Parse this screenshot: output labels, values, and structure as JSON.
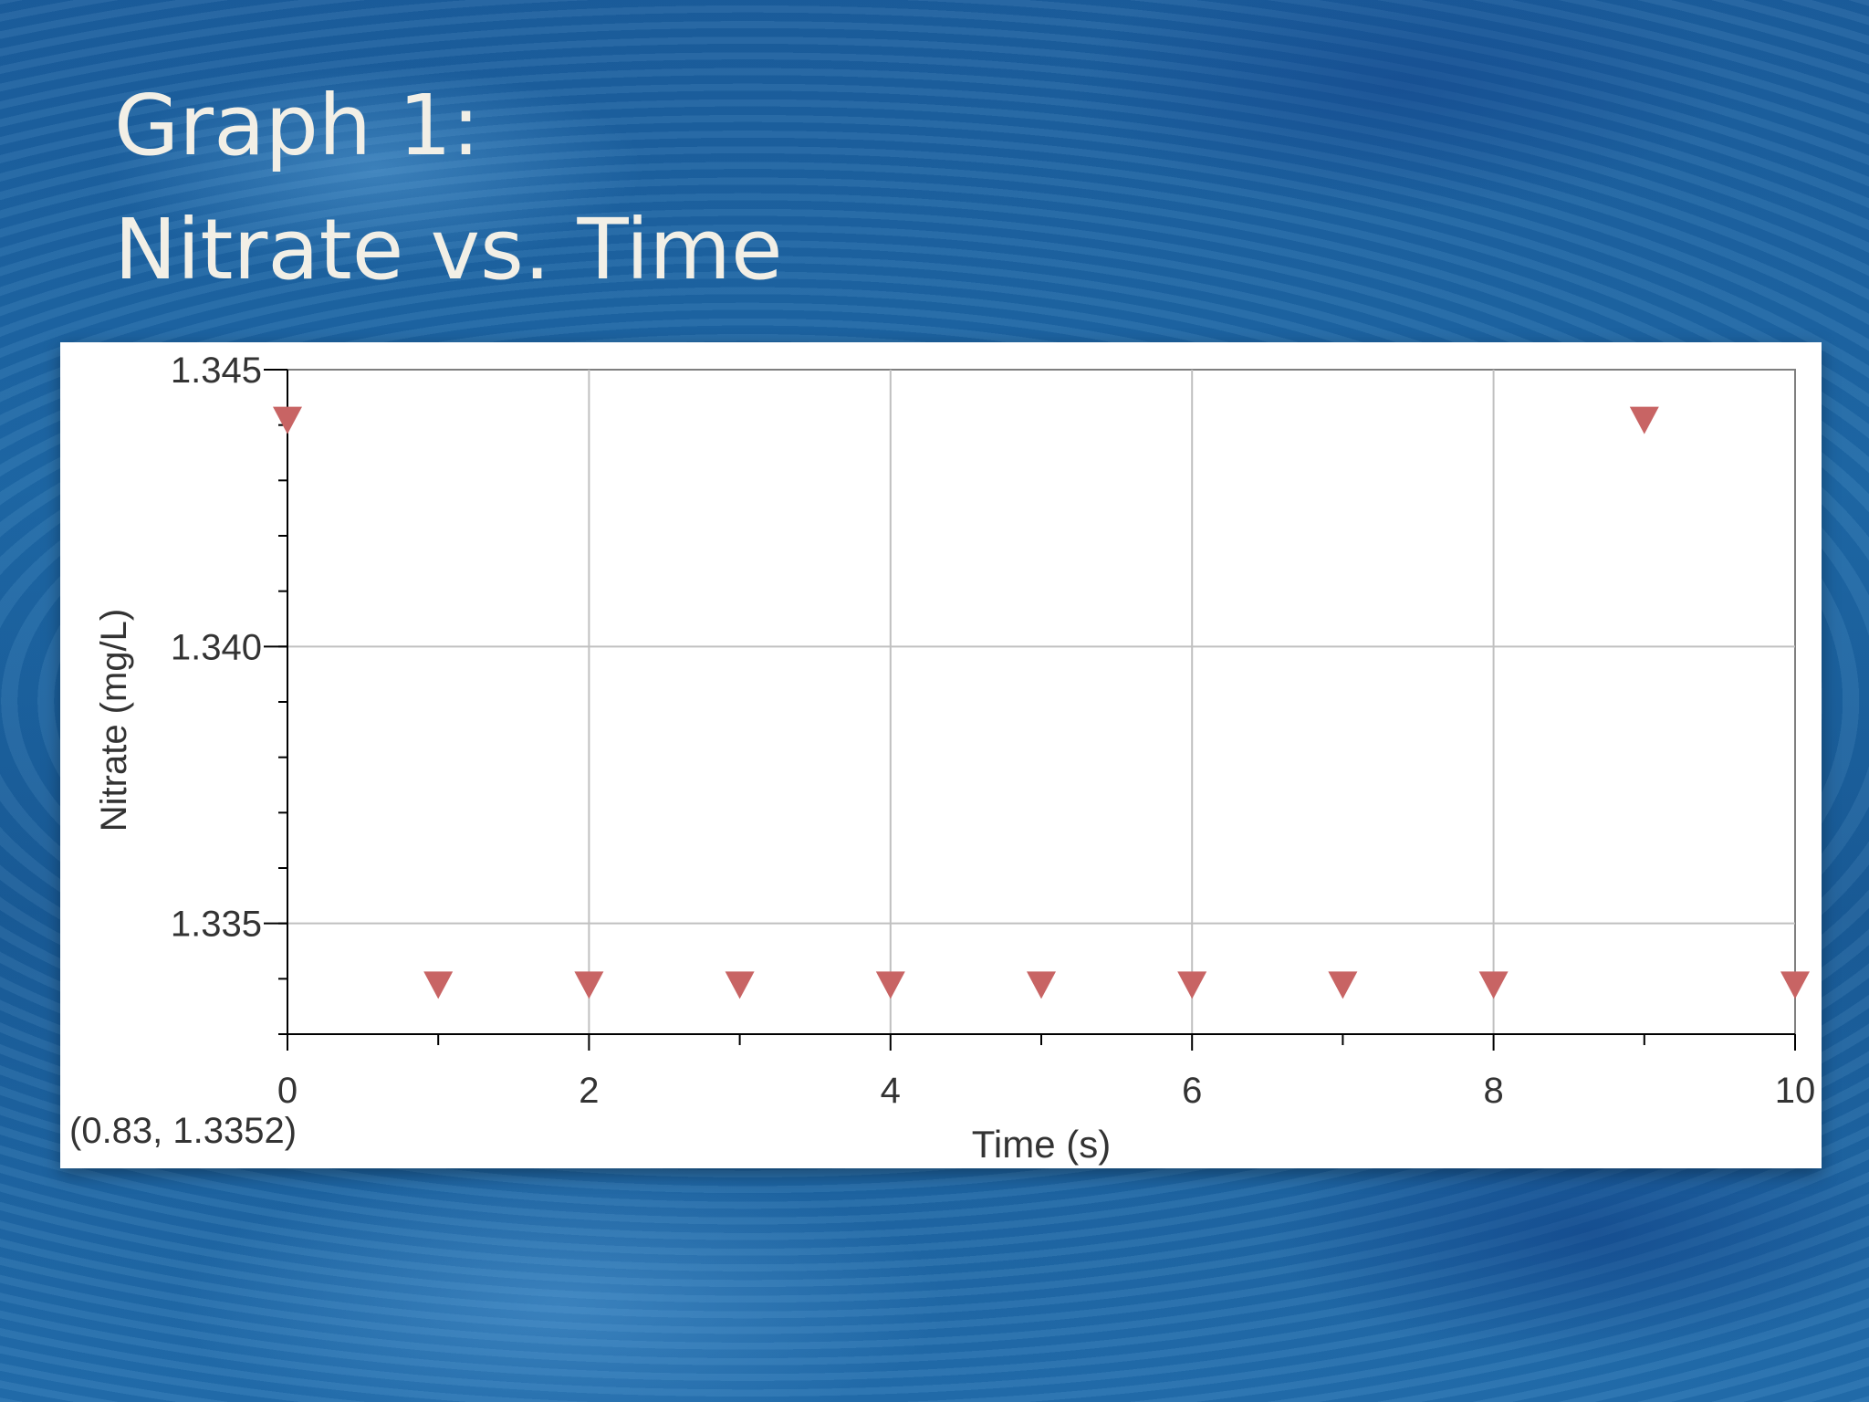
{
  "slide": {
    "title_line1": "Graph 1:",
    "title_line2": "Nitrate vs. Time"
  },
  "colors": {
    "marker": "#c86464",
    "grid": "#c0c0c0",
    "axis": "#000000",
    "frame": "#7f7f7f"
  },
  "chart_data": {
    "type": "scatter",
    "title": "",
    "xlabel": "Time (s)",
    "ylabel": "Nitrate (mg/L)",
    "xlim": [
      0,
      10
    ],
    "ylim": [
      1.333,
      1.345
    ],
    "x_ticks": [
      "0",
      "2",
      "4",
      "6",
      "8",
      "10"
    ],
    "y_ticks": [
      "1.335",
      "1.340",
      "1.345"
    ],
    "grid": true,
    "marker": "triangle-down",
    "series": [
      {
        "x": [
          0,
          1,
          2,
          3,
          4,
          5,
          6,
          7,
          8,
          9,
          10
        ],
        "y": [
          1.3441,
          1.3339,
          1.3339,
          1.3339,
          1.3339,
          1.3339,
          1.3339,
          1.3339,
          1.3339,
          1.3441,
          1.3339
        ]
      }
    ],
    "cursor_readout": "(0.83, 1.3352)"
  }
}
